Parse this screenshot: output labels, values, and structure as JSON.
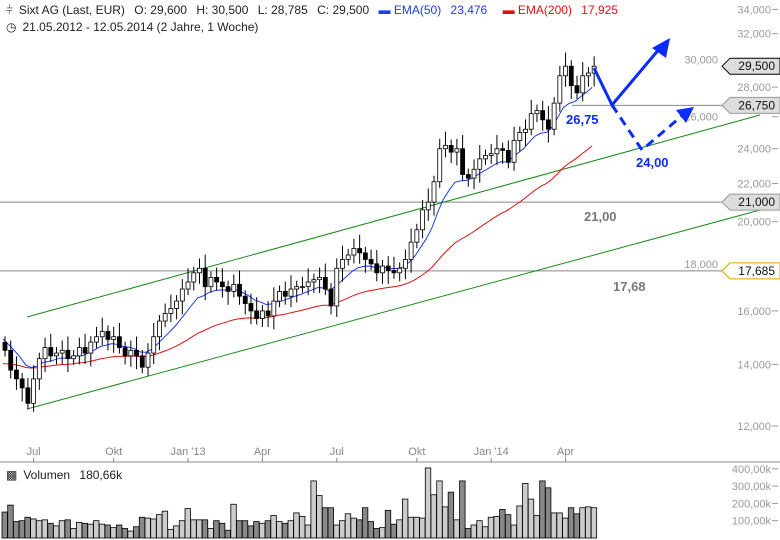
{
  "header": {
    "icon": "candlestick-icon",
    "title": "Sixt AG (Last, EUR)",
    "open": "O: 29,600",
    "high": "H: 30,500",
    "low": "L: 28,785",
    "close": "C: 29,500",
    "ema50_label": "EMA(50)",
    "ema50_value": "23,476",
    "ema200_label": "EMA(200)",
    "ema200_value": "17,925",
    "clock_icon": "clock-icon",
    "range": "21.05.2012 - 12.05.2014 (2 Jahre, 1 Woche)"
  },
  "colors": {
    "ema50": "#1a3cff",
    "ema200": "#e01010",
    "trend": "#1a8a1a",
    "annot": "#0a2cff"
  },
  "chart_data": {
    "type": "candlestick",
    "scale": "log",
    "ylim": [
      11500,
      34500
    ],
    "yticks": [
      "34,000",
      "32,000",
      "30,000",
      "28,000",
      "26,000",
      "24,000",
      "22,000",
      "20,000",
      "18,000",
      "16,000",
      "14,000",
      "12,000"
    ],
    "ytick_values": [
      34,
      32,
      30,
      28,
      26,
      24,
      22,
      20,
      18,
      16,
      14,
      12
    ],
    "xticks": [
      "Jul",
      "Okt",
      "Jan '13",
      "Apr",
      "Jul",
      "Okt",
      "Jan '14",
      "Apr"
    ],
    "xtick_weeks": [
      5,
      19,
      32,
      45,
      58,
      72,
      85,
      98
    ],
    "closes": [
      14.5,
      13.8,
      13.5,
      13.2,
      12.7,
      13.5,
      14.2,
      14.6,
      14.3,
      14.4,
      14.5,
      14.2,
      14.3,
      14.6,
      14.4,
      14.8,
      15.0,
      15.2,
      14.9,
      15.0,
      14.6,
      14.3,
      14.5,
      14.3,
      13.9,
      14.4,
      15.0,
      15.6,
      15.9,
      16.1,
      16.4,
      16.9,
      17.2,
      17.6,
      17.8,
      17.0,
      17.4,
      17.2,
      17.0,
      16.8,
      17.1,
      16.6,
      16.3,
      16.0,
      15.7,
      16.0,
      15.8,
      16.4,
      16.8,
      16.6,
      16.9,
      17.0,
      17.0,
      17.2,
      17.3,
      17.4,
      16.9,
      16.2,
      17.8,
      18.2,
      18.4,
      18.7,
      18.5,
      18.2,
      18.0,
      17.6,
      17.9,
      17.7,
      17.6,
      17.8,
      18.2,
      19.0,
      19.6,
      20.6,
      21.0,
      22.1,
      24.0,
      24.2,
      23.8,
      24.0,
      22.5,
      22.3,
      22.8,
      23.4,
      23.6,
      23.7,
      24.0,
      23.9,
      23.2,
      24.5,
      25.0,
      25.2,
      26.2,
      26.4,
      25.8,
      25.2,
      26.9,
      28.8,
      29.5,
      28.1,
      27.6,
      28.8,
      29.0,
      29.5
    ],
    "ema50_last": 23.476,
    "ema200_last": 17.925,
    "levels": [
      {
        "value": 29.5,
        "tag": "29,500"
      },
      {
        "value": 26.75,
        "tag": "26,750",
        "label": "26,75"
      },
      {
        "value": 21.0,
        "tag": "21,000",
        "label": "21,00"
      },
      {
        "value": 17.685,
        "tag": "17,685",
        "label": "17,68"
      }
    ],
    "annotation_target": "24,00",
    "volume": {
      "label": "Volumen",
      "value": "180,66k",
      "icon": "volume-icon",
      "yticks": [
        "400,00k",
        "300,00k",
        "200,00k",
        "100,00k"
      ],
      "ytick_values": [
        400,
        300,
        200,
        100
      ],
      "values_k": [
        150,
        190,
        95,
        100,
        120,
        110,
        100,
        105,
        85,
        70,
        100,
        105,
        55,
        90,
        85,
        80,
        100,
        80,
        75,
        60,
        75,
        55,
        40,
        65,
        120,
        115,
        110,
        135,
        155,
        50,
        70,
        100,
        170,
        105,
        105,
        105,
        55,
        100,
        85,
        45,
        195,
        100,
        100,
        70,
        95,
        85,
        100,
        130,
        95,
        85,
        100,
        145,
        125,
        75,
        330,
        245,
        175,
        175,
        75,
        100,
        140,
        115,
        105,
        175,
        95,
        55,
        60,
        160,
        80,
        105,
        225,
        120,
        120,
        115,
        405,
        250,
        330,
        180,
        265,
        105,
        330,
        55,
        75,
        100,
        65,
        120,
        125,
        165,
        135,
        75,
        185,
        315,
        225,
        130,
        330,
        290,
        145,
        145,
        115,
        175,
        140,
        175,
        180,
        175
      ]
    }
  }
}
